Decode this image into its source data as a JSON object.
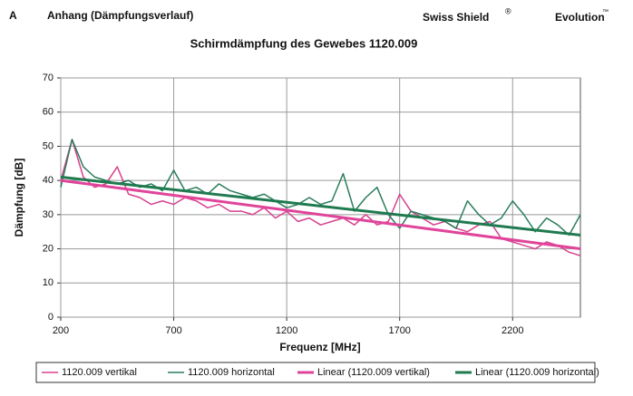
{
  "header": {
    "section": "A",
    "title": "Anhang (Dämpfungsverlauf)",
    "brand": "Swiss Shield",
    "brand_mark": "®",
    "product": "Evolution",
    "product_mark": "™"
  },
  "chart_data": {
    "type": "line",
    "title": "Schirmdämpfung des Gewebes 1120.009",
    "x_label": "Frequenz [MHz]",
    "y_label": "Dämpfung [dB]",
    "xlim": [
      200,
      2500
    ],
    "xticks": [
      200,
      700,
      1200,
      1700,
      2200
    ],
    "ylim": [
      0,
      70
    ],
    "yticks": [
      0,
      10,
      20,
      30,
      40,
      50,
      60,
      70
    ],
    "grid": true,
    "legend": "bottom",
    "series": [
      {
        "name": "1120.009 vertikal",
        "color": "#d8418f",
        "width": 1.5,
        "x": [
          200,
          250,
          300,
          350,
          400,
          450,
          500,
          550,
          600,
          650,
          700,
          750,
          800,
          850,
          900,
          950,
          1000,
          1050,
          1100,
          1150,
          1200,
          1250,
          1300,
          1350,
          1400,
          1450,
          1500,
          1550,
          1600,
          1650,
          1700,
          1750,
          1800,
          1850,
          1900,
          1950,
          2000,
          2050,
          2100,
          2150,
          2200,
          2250,
          2300,
          2350,
          2400,
          2450,
          2500
        ],
        "values": [
          40,
          52,
          41,
          38,
          39,
          44,
          36,
          35,
          33,
          34,
          33,
          35,
          34,
          32,
          33,
          31,
          31,
          30,
          32,
          29,
          31,
          28,
          29,
          27,
          28,
          29,
          27,
          30,
          27,
          28,
          36,
          31,
          29,
          27,
          28,
          26,
          25,
          27,
          28,
          23,
          22,
          21,
          20,
          22,
          21,
          19,
          18
        ]
      },
      {
        "name": "1120.009 horizontal",
        "color": "#2a7d5a",
        "width": 1.5,
        "x": [
          200,
          250,
          300,
          350,
          400,
          450,
          500,
          550,
          600,
          650,
          700,
          750,
          800,
          850,
          900,
          950,
          1000,
          1050,
          1100,
          1150,
          1200,
          1250,
          1300,
          1350,
          1400,
          1450,
          1500,
          1550,
          1600,
          1650,
          1700,
          1750,
          1800,
          1850,
          1900,
          1950,
          2000,
          2050,
          2100,
          2150,
          2200,
          2250,
          2300,
          2350,
          2400,
          2450,
          2500
        ],
        "values": [
          38,
          52,
          44,
          41,
          40,
          39,
          40,
          38,
          39,
          37,
          43,
          37,
          38,
          36,
          39,
          37,
          36,
          35,
          36,
          34,
          32,
          33,
          35,
          33,
          34,
          42,
          31,
          35,
          38,
          30,
          26,
          31,
          30,
          29,
          28,
          26,
          34,
          30,
          27,
          29,
          34,
          30,
          25,
          29,
          27,
          24,
          30
        ]
      },
      {
        "name": "Linear (1120.009 vertikal)",
        "color": "#e0449a",
        "width": 3,
        "x": [
          200,
          2500
        ],
        "values": [
          40,
          20
        ]
      },
      {
        "name": "Linear (1120.009 horizontal)",
        "color": "#1f7a50",
        "width": 3,
        "x": [
          200,
          2500
        ],
        "values": [
          41,
          24
        ]
      }
    ]
  }
}
